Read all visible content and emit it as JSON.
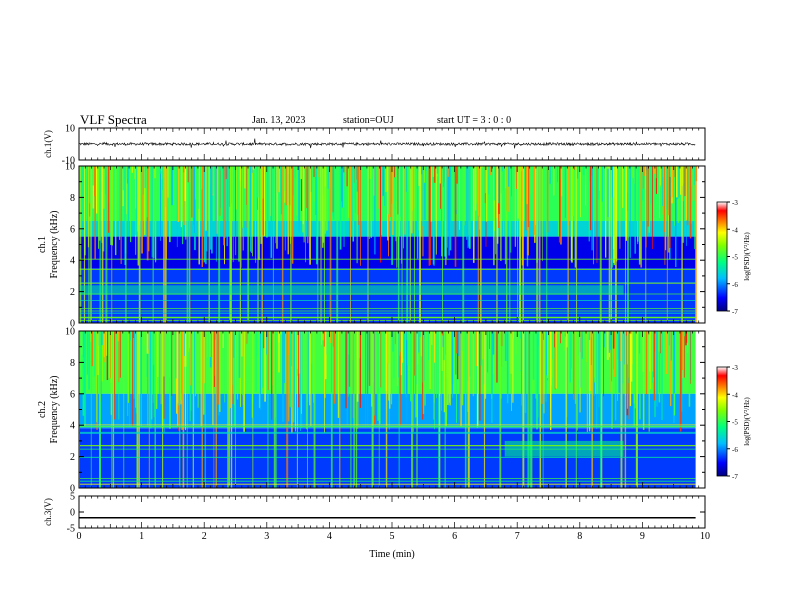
{
  "header": {
    "title": "VLF Spectra",
    "date": "Jan. 13, 2023",
    "station": "station=OUJ",
    "start": "start UT =  3 : 0  : 0"
  },
  "chart_data": [
    {
      "type": "line",
      "ylabel": "ch.1(V)",
      "ylim": [
        -10,
        10
      ],
      "y_tick_labels": [
        "10",
        "-10"
      ],
      "x_range_min": [
        0,
        10
      ],
      "description_level": 0
    },
    {
      "type": "heatmap",
      "ylabel": "ch.1 Frequency (kHz)",
      "ylim_khz": [
        0,
        10
      ],
      "y_tick_labels": [
        "0",
        "2",
        "4",
        "6",
        "8",
        "10"
      ],
      "data_end_min": 9.85,
      "colorbar": {
        "label": "log(PSD)(V²/Hz)",
        "range": [
          -7,
          -3
        ],
        "tick_labels": [
          "-3",
          "-4",
          "-5",
          "-6",
          "-7"
        ],
        "colors": [
          "#00007f",
          "#0000ff",
          "#00bfff",
          "#00ff80",
          "#7fff00",
          "#ffff00",
          "#ff7f00",
          "#ff0000",
          "#ffffff"
        ]
      },
      "bands": [
        {
          "from_khz": 6.5,
          "to_khz": 10,
          "level": -5.0
        },
        {
          "from_khz": 5.5,
          "to_khz": 6.5,
          "level": -5.6
        },
        {
          "from_khz": 3.5,
          "to_khz": 5.5,
          "level": -6.6
        },
        {
          "from_khz": 0,
          "to_khz": 3.5,
          "level": -6.3
        }
      ],
      "hiss_band": {
        "start_min": 0,
        "end_min": 8.7,
        "from_khz": 1.8,
        "to_khz": 2.4,
        "level": -5.3
      }
    },
    {
      "type": "heatmap",
      "ylabel": "ch.2 Frequency (kHz)",
      "ylim_khz": [
        0,
        10
      ],
      "y_tick_labels": [
        "0",
        "2",
        "4",
        "6",
        "8",
        "10"
      ],
      "data_end_min": 9.85,
      "colorbar": {
        "label": "log(PSD)(V²/Hz)",
        "range": [
          -7,
          -3
        ],
        "tick_labels": [
          "-3",
          "-4",
          "-5",
          "-6",
          "-7"
        ],
        "colors": [
          "#00007f",
          "#0000ff",
          "#00bfff",
          "#00ff80",
          "#7fff00",
          "#ffff00",
          "#ff7f00",
          "#ff0000",
          "#ffffff"
        ]
      },
      "bands": [
        {
          "from_khz": 6.0,
          "to_khz": 10,
          "level": -4.9
        },
        {
          "from_khz": 3.8,
          "to_khz": 6.0,
          "level": -5.9
        },
        {
          "from_khz": 0,
          "to_khz": 3.8,
          "level": -6.3
        }
      ],
      "hiss_band": {
        "start_min": 6.8,
        "end_min": 8.7,
        "from_khz": 2.0,
        "to_khz": 3.0,
        "level": -5.2
      }
    },
    {
      "type": "line",
      "ylabel": "ch.3(V)",
      "ylim": [
        -5,
        5
      ],
      "y_tick_labels": [
        "5",
        "0",
        "-5"
      ],
      "constant_value": -1.8
    }
  ],
  "x_axis": {
    "label": "Time (min)",
    "range": [
      0,
      10
    ],
    "tick_labels": [
      "0",
      "1",
      "2",
      "3",
      "4",
      "5",
      "6",
      "7",
      "8",
      "9",
      "10"
    ]
  }
}
